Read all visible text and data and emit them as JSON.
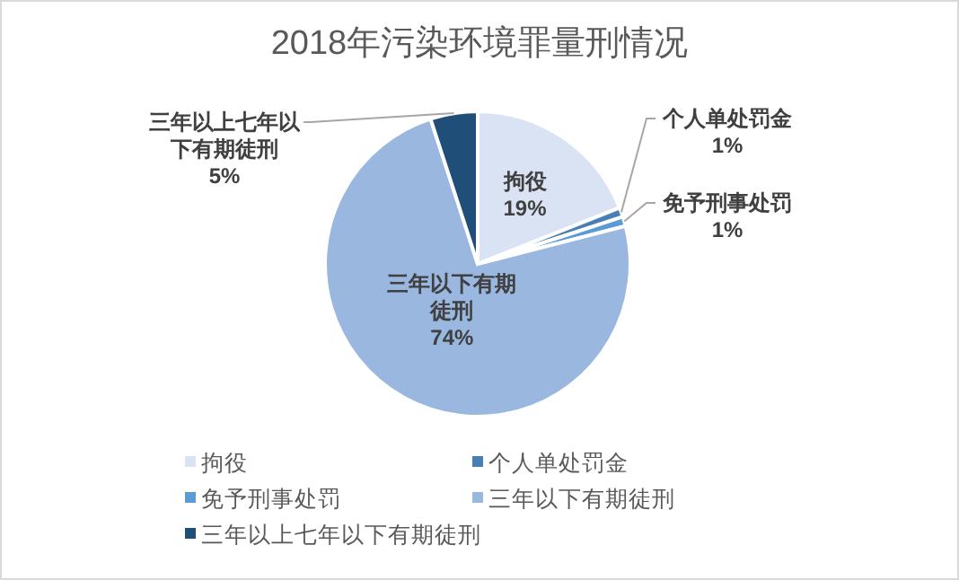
{
  "chart_data": {
    "type": "pie",
    "title": "2018年污染环境罪量刑情况",
    "categories": [
      "拘役",
      "个人单处罚金",
      "免予刑事处罚",
      "三年以下有期徒刑",
      "三年以上七年以下有期徒刑"
    ],
    "values": [
      19,
      1,
      1,
      74,
      5
    ],
    "colors": [
      "#dae3f3",
      "#4a7fb5",
      "#5b9bd5",
      "#9ab8df",
      "#1f4e79"
    ],
    "value_labels": [
      "19%",
      "1%",
      "1%",
      "74%",
      "5%"
    ],
    "legend": "bottom"
  }
}
